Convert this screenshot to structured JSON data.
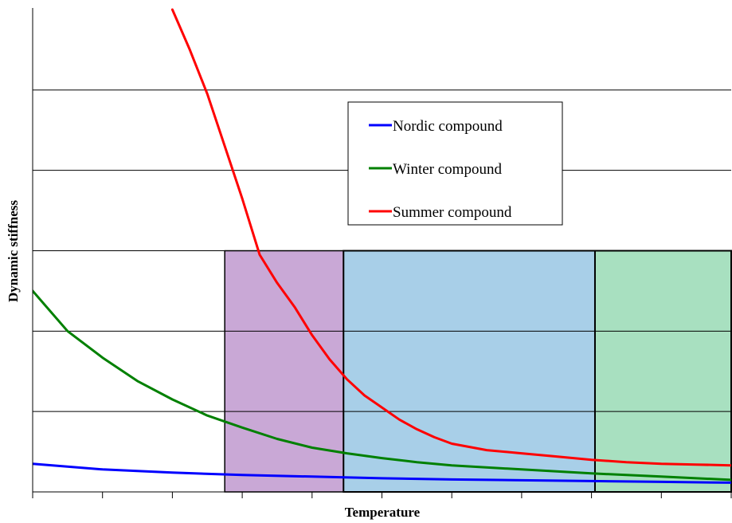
{
  "chart_data": {
    "type": "line",
    "title": "",
    "xlabel": "Temperature",
    "ylabel": "Dynamic stiffness",
    "xlim": [
      0,
      100
    ],
    "ylim": [
      0,
      6
    ],
    "x_tick_count": 10,
    "y_gridlines": [
      1,
      2,
      3,
      4,
      5
    ],
    "grid": "horizontal",
    "legend_placement": "top-center",
    "series": [
      {
        "name": "Nordic compound",
        "color": "#0000ff",
        "x": [
          0,
          10,
          20,
          30,
          40,
          50,
          60,
          70,
          80,
          90,
          100
        ],
        "y": [
          0.35,
          0.28,
          0.24,
          0.21,
          0.19,
          0.17,
          0.155,
          0.145,
          0.135,
          0.125,
          0.115
        ]
      },
      {
        "name": "Winter compound",
        "color": "#008000",
        "x": [
          0,
          5,
          10,
          15,
          20,
          25,
          30,
          35,
          40,
          45,
          50,
          55,
          60,
          70,
          80,
          90,
          100
        ],
        "y": [
          2.5,
          2.0,
          1.67,
          1.38,
          1.15,
          0.95,
          0.8,
          0.66,
          0.55,
          0.48,
          0.42,
          0.37,
          0.33,
          0.28,
          0.23,
          0.19,
          0.15
        ]
      },
      {
        "name": "Summer compound",
        "color": "#ff0000",
        "x": [
          20,
          22.5,
          25,
          27.5,
          30,
          32.5,
          35,
          37.5,
          40,
          42.5,
          45,
          47.5,
          50,
          52.5,
          55,
          57.5,
          60,
          65,
          70,
          75,
          80,
          85,
          90,
          95,
          100
        ],
        "y": [
          6.0,
          5.5,
          4.95,
          4.3,
          3.65,
          2.95,
          2.6,
          2.3,
          1.95,
          1.65,
          1.4,
          1.2,
          1.05,
          0.9,
          0.78,
          0.68,
          0.6,
          0.52,
          0.48,
          0.44,
          0.4,
          0.37,
          0.35,
          0.34,
          0.33
        ]
      }
    ],
    "regions": [
      {
        "x_range": [
          27.5,
          44.5
        ],
        "y_max": 3,
        "color": "#c9a8d6"
      },
      {
        "x_range": [
          44.5,
          80.5
        ],
        "y_max": 3,
        "color": "#a8cfe8"
      },
      {
        "x_range": [
          80.5,
          100
        ],
        "y_max": 3,
        "color": "#a8e0c0"
      }
    ]
  }
}
